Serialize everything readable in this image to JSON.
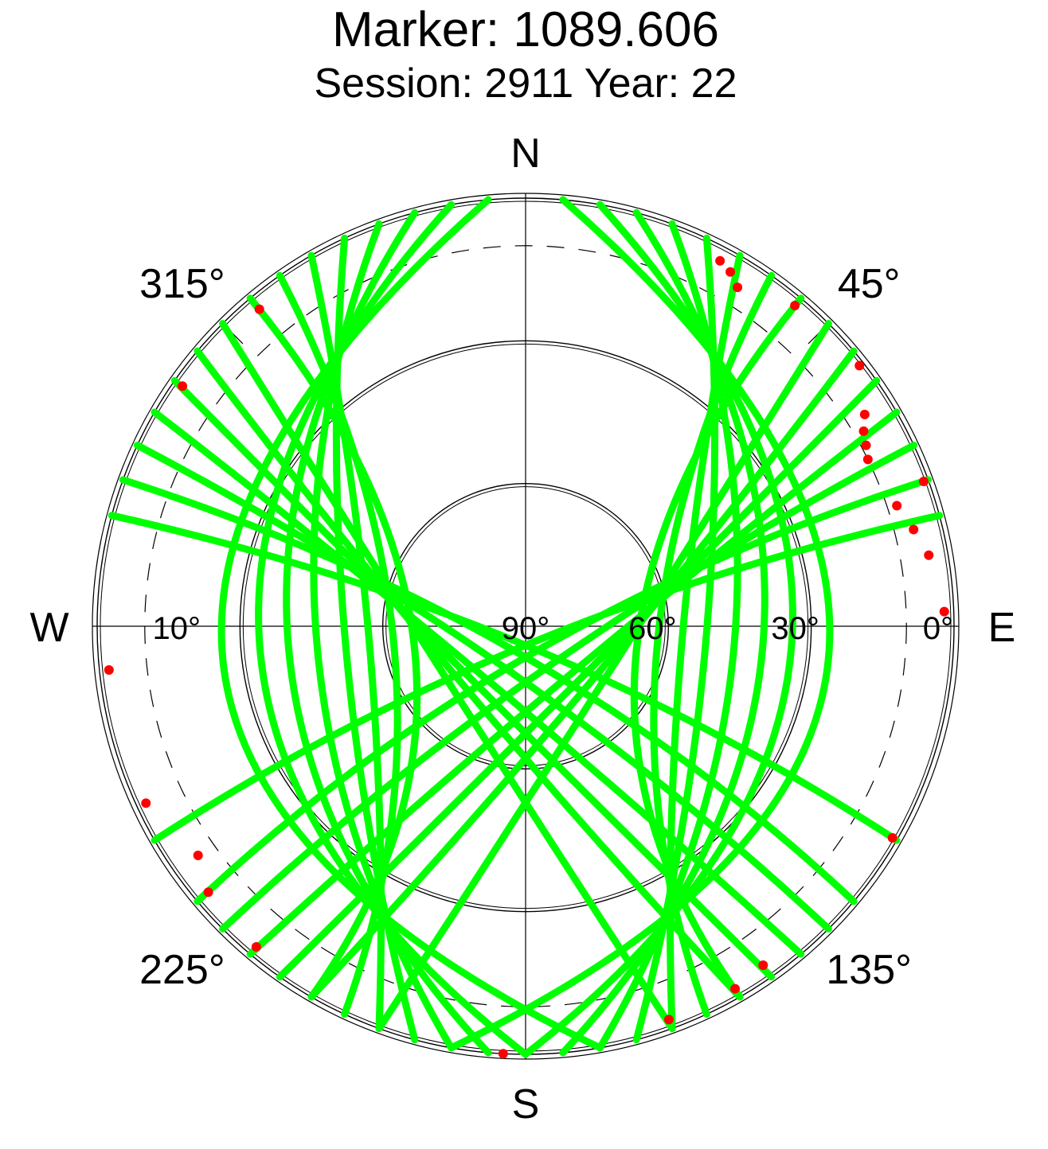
{
  "chart_data": {
    "type": "scatter",
    "projection": "polar-skyplot",
    "title": "Marker: 1089.606",
    "subtitle": "Session: 2911 Year: 22",
    "compass": {
      "north": "N",
      "south": "S",
      "east": "E",
      "west": "W"
    },
    "azimuth_labels": [
      {
        "az": 315,
        "text": "315°"
      },
      {
        "az": 45,
        "text": "45°"
      },
      {
        "az": 225,
        "text": "225°"
      },
      {
        "az": 135,
        "text": "135°"
      }
    ],
    "elevation_labels": [
      {
        "el": 10,
        "text": "10°",
        "side": "west"
      },
      {
        "el": 90,
        "text": "90°",
        "side": "center"
      },
      {
        "el": 60,
        "text": "60°",
        "side": "east"
      },
      {
        "el": 30,
        "text": "30°",
        "side": "east"
      },
      {
        "el": 0,
        "text": "0°",
        "side": "east"
      }
    ],
    "elevation_circles": [
      0,
      30,
      60
    ],
    "elevation_mask_deg": 10,
    "grid": true,
    "colors": {
      "good": "#00ff00",
      "flagged": "#ff0000",
      "grid": "#000000"
    },
    "note_colors": "green = observations, red = flagged observations",
    "arcs": [
      {
        "az1": 5,
        "az2": 190,
        "peak_el": 26,
        "peak_az": 98
      },
      {
        "az1": 10,
        "az2": 180,
        "peak_el": 34,
        "peak_az": 95
      },
      {
        "az1": 15,
        "az2": 175,
        "peak_el": 40,
        "peak_az": 95
      },
      {
        "az1": 20,
        "az2": 170,
        "peak_el": 46,
        "peak_az": 95
      },
      {
        "az1": 25,
        "az2": 165,
        "peak_el": 52,
        "peak_az": 95
      },
      {
        "az1": 30,
        "az2": 160,
        "peak_el": 57,
        "peak_az": 95
      },
      {
        "az1": 35,
        "az2": 155,
        "peak_el": 62,
        "peak_az": 100
      },
      {
        "az1": 40,
        "az2": 150,
        "peak_el": 66,
        "peak_az": 105
      },
      {
        "az1": 45,
        "az2": 200,
        "peak_el": 70,
        "peak_az": 120
      },
      {
        "az1": 50,
        "az2": 210,
        "peak_el": 72,
        "peak_az": 130
      },
      {
        "az1": 55,
        "az2": 215,
        "peak_el": 74,
        "peak_az": 140
      },
      {
        "az1": 60,
        "az2": 220,
        "peak_el": 76,
        "peak_az": 150
      },
      {
        "az1": 65,
        "az2": 225,
        "peak_el": 80,
        "peak_az": 160
      },
      {
        "az1": 70,
        "az2": 230,
        "peak_el": 84,
        "peak_az": 170
      },
      {
        "az1": 75,
        "az2": 240,
        "peak_el": 86,
        "peak_az": 180
      },
      {
        "az1": 355,
        "az2": 170,
        "peak_el": 26,
        "peak_az": 262
      },
      {
        "az1": 350,
        "az2": 180,
        "peak_el": 34,
        "peak_az": 265
      },
      {
        "az1": 345,
        "az2": 185,
        "peak_el": 40,
        "peak_az": 265
      },
      {
        "az1": 340,
        "az2": 190,
        "peak_el": 46,
        "peak_az": 265
      },
      {
        "az1": 335,
        "az2": 195,
        "peak_el": 52,
        "peak_az": 265
      },
      {
        "az1": 330,
        "az2": 200,
        "peak_el": 57,
        "peak_az": 265
      },
      {
        "az1": 325,
        "az2": 205,
        "peak_el": 62,
        "peak_az": 260
      },
      {
        "az1": 320,
        "az2": 210,
        "peak_el": 66,
        "peak_az": 255
      },
      {
        "az1": 315,
        "az2": 160,
        "peak_el": 70,
        "peak_az": 240
      },
      {
        "az1": 310,
        "az2": 150,
        "peak_el": 72,
        "peak_az": 230
      },
      {
        "az1": 305,
        "az2": 145,
        "peak_el": 74,
        "peak_az": 220
      },
      {
        "az1": 300,
        "az2": 140,
        "peak_el": 76,
        "peak_az": 210
      },
      {
        "az1": 295,
        "az2": 135,
        "peak_el": 80,
        "peak_az": 200
      },
      {
        "az1": 290,
        "az2": 130,
        "peak_el": 84,
        "peak_az": 190
      },
      {
        "az1": 285,
        "az2": 120,
        "peak_el": 86,
        "peak_az": 180
      }
    ],
    "flagged_points": [
      {
        "az": 28,
        "el": 3
      },
      {
        "az": 30,
        "el": 4
      },
      {
        "az": 32,
        "el": 6
      },
      {
        "az": 40,
        "el": 2
      },
      {
        "az": 52,
        "el": 1
      },
      {
        "az": 58,
        "el": 6
      },
      {
        "az": 60,
        "el": 8
      },
      {
        "az": 62,
        "el": 9
      },
      {
        "az": 64,
        "el": 10
      },
      {
        "az": 70,
        "el": 1
      },
      {
        "az": 305,
        "el": 2
      },
      {
        "az": 320,
        "el": 3
      },
      {
        "az": 264,
        "el": 2
      },
      {
        "az": 245,
        "el": 2
      },
      {
        "az": 235,
        "el": 6
      },
      {
        "az": 230,
        "el": 3
      },
      {
        "az": 220,
        "el": 2
      },
      {
        "az": 183,
        "el": 0
      },
      {
        "az": 160,
        "el": 2
      },
      {
        "az": 150,
        "el": 2
      },
      {
        "az": 145,
        "el": 3
      },
      {
        "az": 120,
        "el": 1
      },
      {
        "az": 88,
        "el": 2
      },
      {
        "az": 80,
        "el": 4
      },
      {
        "az": 76,
        "el": 6
      },
      {
        "az": 72,
        "el": 8
      }
    ]
  }
}
